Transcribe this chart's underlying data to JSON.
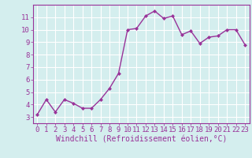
{
  "x": [
    0,
    1,
    2,
    3,
    4,
    5,
    6,
    7,
    8,
    9,
    10,
    11,
    12,
    13,
    14,
    15,
    16,
    17,
    18,
    19,
    20,
    21,
    22,
    23
  ],
  "y": [
    3.2,
    4.4,
    3.4,
    4.4,
    4.1,
    3.7,
    3.7,
    4.4,
    5.3,
    6.5,
    10.0,
    10.1,
    11.1,
    11.5,
    10.9,
    11.1,
    9.6,
    9.9,
    8.9,
    9.4,
    9.5,
    10.0,
    10.0,
    8.8
  ],
  "line_color": "#993399",
  "marker": "D",
  "marker_size": 2,
  "bg_color": "#d4eeee",
  "grid_color": "#ffffff",
  "xlabel": "Windchill (Refroidissement éolien,°C)",
  "xlabel_color": "#993399",
  "tick_color": "#993399",
  "xlim": [
    -0.5,
    23.5
  ],
  "ylim": [
    2.5,
    12.0
  ],
  "yticks": [
    3,
    4,
    5,
    6,
    7,
    8,
    9,
    10,
    11
  ],
  "xticks": [
    0,
    1,
    2,
    3,
    4,
    5,
    6,
    7,
    8,
    9,
    10,
    11,
    12,
    13,
    14,
    15,
    16,
    17,
    18,
    19,
    20,
    21,
    22,
    23
  ],
  "spine_color": "#993399",
  "font_family": "monospace",
  "tick_fontsize": 6.5,
  "xlabel_fontsize": 7.0
}
